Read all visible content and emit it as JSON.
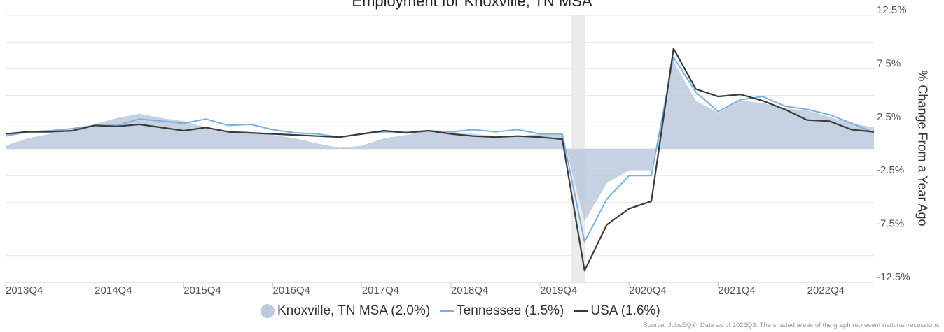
{
  "chart_data": {
    "type": "line",
    "title": "Employment for Knoxville, TN MSA",
    "y_axis_label": "% Change From a Year Ago",
    "source": "Source: JobsEQ®. Data as of 2023Q3. The shaded areas of the graph represent national recessions.",
    "categories": [
      "2013Q4",
      null,
      null,
      null,
      "2014Q4",
      null,
      null,
      null,
      "2015Q4",
      null,
      null,
      null,
      "2016Q4",
      null,
      null,
      null,
      "2017Q4",
      null,
      null,
      null,
      "2018Q4",
      null,
      null,
      null,
      "2019Q4",
      null,
      null,
      null,
      "2020Q4",
      null,
      null,
      null,
      "2021Q4",
      null,
      null,
      null,
      "2022Q4",
      null,
      null,
      null
    ],
    "series": [
      {
        "name": "Knoxville, TN MSA (2.0%)",
        "style": "area",
        "color": "#bccadd",
        "values": [
          0.3,
          1.0,
          1.4,
          1.8,
          2.3,
          2.9,
          3.3,
          2.9,
          2.6,
          2.0,
          1.7,
          1.6,
          1.3,
          1.0,
          0.5,
          0.1,
          0.3,
          1.0,
          1.3,
          1.7,
          1.6,
          1.4,
          1.2,
          1.2,
          1.4,
          1.4,
          -6.8,
          -3.2,
          -2.0,
          -2.0,
          8.2,
          4.5,
          3.4,
          4.5,
          4.3,
          3.8,
          3.6,
          3.0,
          2.4,
          2.0
        ]
      },
      {
        "name": "Tennessee (1.5%)",
        "style": "line",
        "color": "#7ab0e2",
        "values": [
          1.2,
          1.6,
          1.7,
          1.9,
          2.2,
          2.2,
          2.8,
          2.6,
          2.4,
          2.8,
          2.2,
          2.3,
          1.8,
          1.5,
          1.4,
          1.1,
          1.4,
          1.6,
          1.6,
          1.7,
          1.6,
          1.8,
          1.6,
          1.8,
          1.4,
          1.4,
          -8.7,
          -4.7,
          -2.5,
          -2.5,
          8.6,
          5.3,
          3.5,
          4.6,
          4.9,
          4.0,
          3.7,
          3.2,
          2.4,
          1.5
        ]
      },
      {
        "name": "USA (1.6%)",
        "style": "line",
        "color": "#3b3b3d",
        "values": [
          1.4,
          1.6,
          1.6,
          1.7,
          2.2,
          2.1,
          2.3,
          2.0,
          1.7,
          2.0,
          1.6,
          1.5,
          1.4,
          1.3,
          1.2,
          1.1,
          1.4,
          1.7,
          1.5,
          1.7,
          1.4,
          1.2,
          1.1,
          1.2,
          1.1,
          0.9,
          -11.4,
          -7.1,
          -5.6,
          -4.9,
          9.4,
          5.6,
          4.9,
          5.1,
          4.5,
          3.7,
          2.7,
          2.6,
          1.8,
          1.6
        ]
      }
    ],
    "ylim": [
      -12.5,
      12.5
    ],
    "yticks": [
      {
        "value": -12.5,
        "label": "-12.5%"
      },
      {
        "value": -7.5,
        "label": "-7.5%"
      },
      {
        "value": -2.5,
        "label": "-2.5%"
      },
      {
        "value": 2.5,
        "label": "2.5%"
      },
      {
        "value": 7.5,
        "label": "7.5%"
      },
      {
        "value": 12.5,
        "label": "12.5%"
      }
    ],
    "minor_yticks": [
      -10,
      -5,
      0,
      5,
      10
    ],
    "grid": true,
    "y_axis_side": "right",
    "legend": "bottom"
  }
}
